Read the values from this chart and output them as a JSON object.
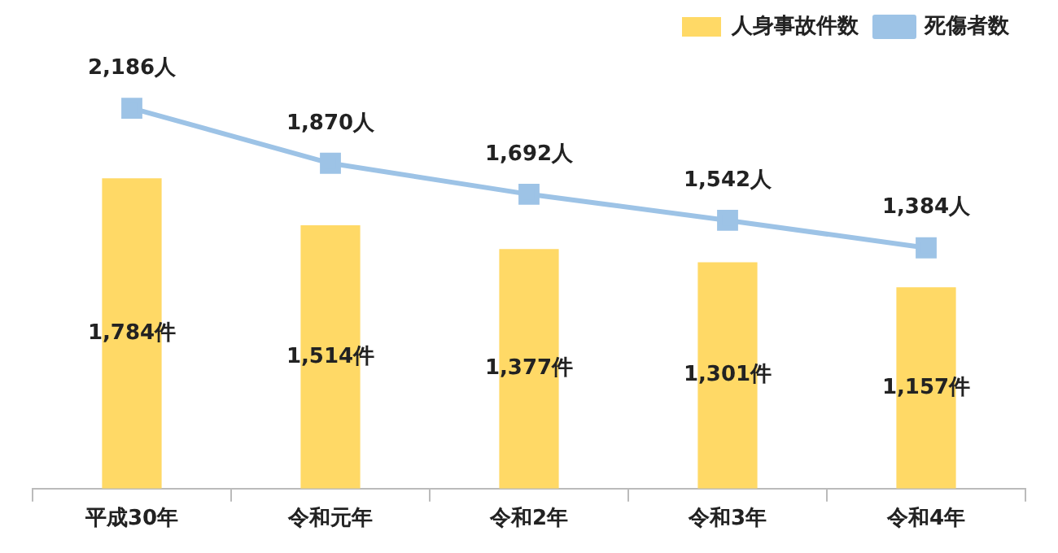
{
  "chart_data": {
    "type": "bar",
    "categories": [
      "平成30年",
      "令和元年",
      "令和2年",
      "令和3年",
      "令和4年"
    ],
    "series": [
      {
        "name": "人身事故件数",
        "color": "#ffd966",
        "values": [
          1784,
          1514,
          1377,
          1301,
          1157
        ],
        "value_labels": [
          "1,784件",
          "1,514件",
          "1,377件",
          "1,301件",
          "1,157件"
        ]
      },
      {
        "name": "死傷者数",
        "type": "line",
        "color": "#9dc3e6",
        "values": [
          2186,
          1870,
          1692,
          1542,
          1384
        ],
        "value_labels": [
          "2,186人",
          "1,870人",
          "1,692人",
          "1,542人",
          "1,384人"
        ]
      }
    ],
    "grid": false,
    "legend": "top right",
    "marker": "square",
    "tick_labels": "x"
  }
}
